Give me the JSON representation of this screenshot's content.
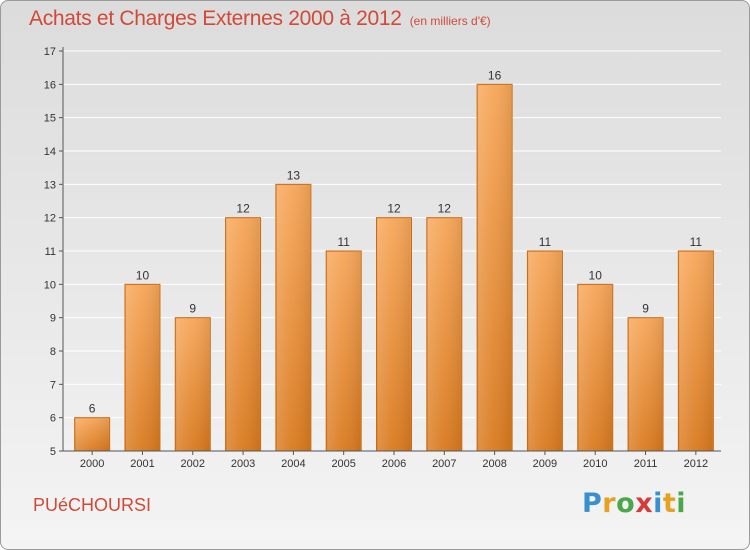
{
  "title": "Achats et Charges Externes 2000 à 2012",
  "subtitle": "(en milliers d'€)",
  "commune": "PUéCHOURSI",
  "brand": {
    "letters": [
      {
        "char": "P",
        "color": "#3a8fd0"
      },
      {
        "char": "r",
        "color": "#e8a020"
      },
      {
        "char": "o",
        "color": "#4aa84a"
      },
      {
        "char": "x",
        "color": "#d83a3a"
      },
      {
        "char": "i",
        "color": "#3a8fd0"
      },
      {
        "char": "t",
        "color": "#e8a020"
      },
      {
        "char": "i",
        "color": "#4aa84a"
      }
    ]
  },
  "colors": {
    "bar_light": "#f7a75a",
    "bar_dark": "#d97a1f",
    "bar_stroke": "#c66b16",
    "title": "#d04a38",
    "grid": "#ffffff",
    "axis": "#555555",
    "text": "#333333"
  },
  "chart_data": {
    "type": "bar",
    "title": "Achats et Charges Externes 2000 à 2012",
    "subtitle": "(en milliers d'€)",
    "categories": [
      "2000",
      "2001",
      "2002",
      "2003",
      "2004",
      "2005",
      "2006",
      "2007",
      "2008",
      "2009",
      "2010",
      "2011",
      "2012"
    ],
    "values": [
      6,
      10,
      9,
      12,
      13,
      11,
      12,
      12,
      16,
      11,
      10,
      9,
      11
    ],
    "value_labels": [
      "6",
      "10",
      "9",
      "12",
      "13",
      "11",
      "12",
      "12",
      "16",
      "11",
      "10",
      "9",
      "11"
    ],
    "ylim": [
      5,
      17
    ],
    "yticks": [
      "5",
      "6",
      "7",
      "8",
      "9",
      "10",
      "11",
      "12",
      "13",
      "14",
      "15",
      "16",
      "17"
    ],
    "grid": true,
    "xlabel": "",
    "ylabel": ""
  }
}
